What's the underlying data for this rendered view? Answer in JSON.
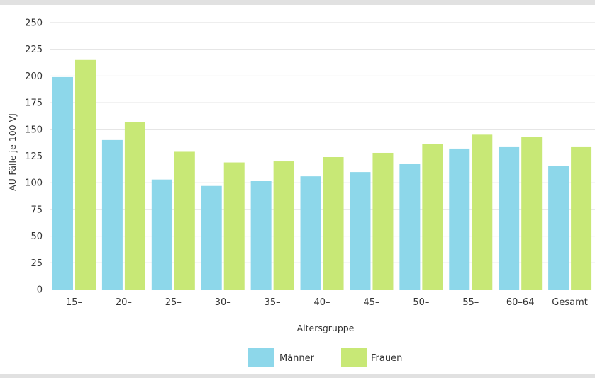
{
  "chart_data": {
    "type": "bar",
    "categories": [
      "15–",
      "20–",
      "25–",
      "30–",
      "35–",
      "40–",
      "45–",
      "50–",
      "55–",
      "60–64",
      "Gesamt"
    ],
    "series": [
      {
        "name": "Männer",
        "color": "#8dd7ea",
        "values": [
          199,
          140,
          103,
          97,
          102,
          106,
          110,
          118,
          132,
          134,
          116
        ]
      },
      {
        "name": "Frauen",
        "color": "#c8e876",
        "values": [
          215,
          157,
          129,
          119,
          120,
          124,
          128,
          136,
          145,
          143,
          134
        ]
      }
    ],
    "xlabel": "Altersgruppe",
    "ylabel": "AU-Fälle je 100 VJ",
    "ylim": [
      0,
      250
    ],
    "yticks": [
      0,
      25,
      50,
      75,
      100,
      125,
      150,
      175,
      200,
      225,
      250
    ],
    "grid": true,
    "legend": "bottom-center"
  }
}
